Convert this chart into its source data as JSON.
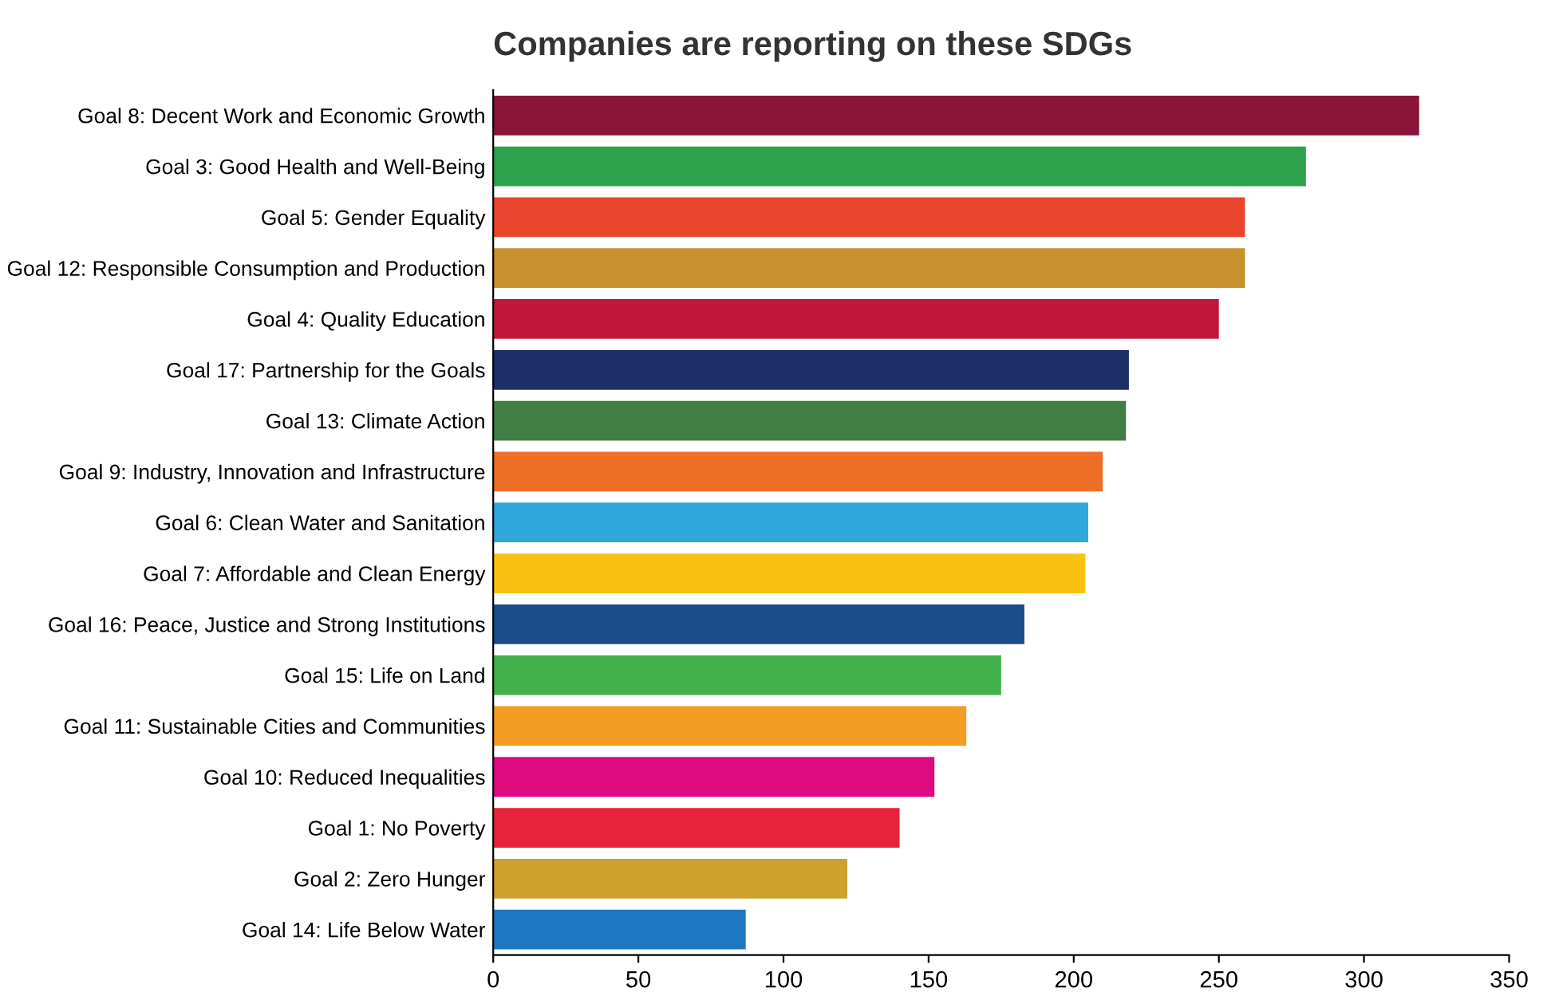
{
  "chart_data": {
    "type": "bar",
    "orientation": "horizontal",
    "title": "Companies are reporting on these SDGs",
    "categories": [
      "Goal 8: Decent Work and Economic Growth",
      "Goal 3: Good Health and Well-Being",
      "Goal 5: Gender Equality",
      "Goal 12: Responsible Consumption and Production",
      "Goal 4: Quality Education",
      "Goal 17: Partnership for the Goals",
      "Goal 13: Climate Action",
      "Goal 9: Industry, Innovation and Infrastructure",
      "Goal 6: Clean Water and Sanitation",
      "Goal 7: Affordable and Clean Energy",
      "Goal 16: Peace, Justice and Strong Institutions",
      "Goal 15: Life on Land",
      "Goal 11: Sustainable Cities and Communities",
      "Goal 10: Reduced Inequalities",
      "Goal 1: No Poverty",
      "Goal 2: Zero Hunger",
      "Goal 14: Life Below Water"
    ],
    "values": [
      319,
      280,
      259,
      259,
      250,
      219,
      218,
      210,
      205,
      204,
      183,
      175,
      163,
      152,
      140,
      122,
      87
    ],
    "colors": [
      "#8a1538",
      "#2ea24a",
      "#e8452c",
      "#c8902e",
      "#c0173a",
      "#1c3067",
      "#3f7e44",
      "#ef6f26",
      "#2fa7db",
      "#fbc112",
      "#1b4d8a",
      "#41b04a",
      "#f39d24",
      "#de0a80",
      "#e5243b",
      "#cda12d",
      "#1f77c1"
    ],
    "xlim": [
      0,
      350
    ],
    "xticks": [
      0,
      50,
      100,
      150,
      200,
      250,
      300,
      350
    ],
    "grid": false,
    "legend": false
  }
}
